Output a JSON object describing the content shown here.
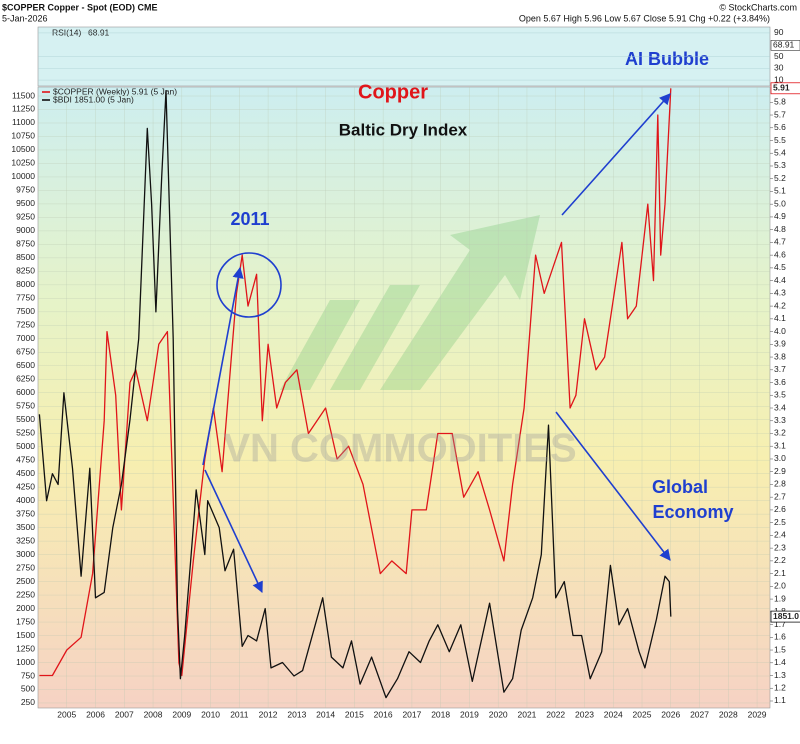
{
  "chart_data": {
    "type": "line",
    "title": "$COPPER Copper - Spot (EOD) CME",
    "date": "5-Jan-2026",
    "source": "© StockCharts.com",
    "header_stats": "Open 5.67 High 5.96 Low 5.67 Close 5.91 Chg +0.22 (+3.84%)",
    "rsi": {
      "label": "RSI(14)",
      "value": 68.91,
      "ylim": [
        0,
        100
      ],
      "yticks": [
        10,
        30,
        50,
        90
      ]
    },
    "annotations": [
      "Copper",
      "Baltic Dry Index",
      "2011",
      "AI Bubble",
      "Global",
      "Economy"
    ],
    "watermark": "VN COMMODITIES",
    "xlim": [
      2004,
      2029.45
    ],
    "xticks": [
      2005,
      2006,
      2007,
      2008,
      2009,
      2010,
      2011,
      2012,
      2013,
      2014,
      2015,
      2016,
      2017,
      2018,
      2019,
      2020,
      2021,
      2022,
      2023,
      2024,
      2025,
      2026,
      2027,
      2028,
      2029
    ],
    "ylim": [
      157,
      11667
    ],
    "yticks": [
      250,
      500,
      750,
      1000,
      1250,
      1500,
      1750,
      2000,
      2250,
      2500,
      2750,
      3000,
      3250,
      3500,
      3750,
      4000,
      4250,
      4500,
      4750,
      5000,
      5250,
      5500,
      5750,
      6000,
      6250,
      6500,
      6750,
      7000,
      7250,
      7500,
      7750,
      8000,
      8250,
      8500,
      8750,
      9000,
      9250,
      9500,
      9750,
      10000,
      10250,
      10500,
      10750,
      11000,
      11250,
      11500
    ],
    "y2lim": [
      1.045,
      5.92
    ],
    "y2ticks": [
      1.1,
      1.2,
      1.3,
      1.4,
      1.5,
      1.6,
      1.7,
      1.8,
      1.9,
      {
        "value": 2,
        "label": "2.0"
      },
      2.1,
      2.2,
      2.3,
      2.4,
      2.5,
      2.6,
      2.7,
      2.8,
      2.9,
      {
        "value": 3,
        "label": "3.0"
      },
      3.1,
      3.2,
      3.3,
      3.4,
      3.5,
      3.6,
      3.7,
      3.8,
      3.9,
      {
        "value": 4,
        "label": "4.0"
      },
      4.1,
      4.2,
      4.3,
      4.4,
      4.5,
      4.6,
      4.7,
      4.8,
      4.9,
      {
        "value": 5,
        "label": "5.0"
      },
      5.1,
      5.2,
      5.3,
      5.4,
      5.5,
      5.6,
      5.7,
      5.8
    ],
    "grid": true,
    "series": [
      {
        "name": "$COPPER (Weekly) 5.91 (5 Jan)",
        "color": "#e0151a",
        "axis": "y2",
        "last_label": "5.91",
        "x": [
          2004.05,
          2004.5,
          2005.0,
          2005.5,
          2005.9,
          2006.3,
          2006.4,
          2006.7,
          2006.9,
          2007.2,
          2007.4,
          2007.8,
          2008.2,
          2008.5,
          2008.9,
          2009.0,
          2009.4,
          2009.8,
          2010.1,
          2010.4,
          2010.9,
          2011.1,
          2011.3,
          2011.6,
          2011.8,
          2012.0,
          2012.3,
          2012.6,
          2013.0,
          2013.4,
          2014.0,
          2014.4,
          2014.8,
          2015.3,
          2015.9,
          2016.3,
          2016.8,
          2017.0,
          2017.5,
          2017.9,
          2018.4,
          2018.8,
          2019.3,
          2019.7,
          2020.2,
          2020.5,
          2020.9,
          2021.3,
          2021.6,
          2021.9,
          2022.2,
          2022.5,
          2022.7,
          2023.0,
          2023.4,
          2023.7,
          2024.3,
          2024.5,
          2024.8,
          2025.2,
          2025.4,
          2025.55,
          2025.65,
          2025.8,
          2026.0
        ],
        "values": [
          1.3,
          1.3,
          1.5,
          1.6,
          2.1,
          3.3,
          4.0,
          3.5,
          2.6,
          3.6,
          3.7,
          3.3,
          3.9,
          4.0,
          1.4,
          1.3,
          2.2,
          3.0,
          3.4,
          2.9,
          4.3,
          4.6,
          4.2,
          4.45,
          3.3,
          3.9,
          3.4,
          3.6,
          3.7,
          3.2,
          3.4,
          3.0,
          3.1,
          2.8,
          2.1,
          2.2,
          2.1,
          2.6,
          2.6,
          3.2,
          3.2,
          2.7,
          2.9,
          2.6,
          2.2,
          2.8,
          3.4,
          4.6,
          4.3,
          4.5,
          4.7,
          3.4,
          3.5,
          4.1,
          3.7,
          3.8,
          4.7,
          4.1,
          4.2,
          5.0,
          4.4,
          5.7,
          4.6,
          5.0,
          5.91
        ]
      },
      {
        "name": "$BDI 1851.00 (5 Jan)",
        "color": "#111111",
        "axis": "y",
        "last_label": "1851.0",
        "x": [
          2004.05,
          2004.3,
          2004.5,
          2004.7,
          2004.9,
          2005.2,
          2005.5,
          2005.8,
          2006.0,
          2006.3,
          2006.6,
          2006.9,
          2007.2,
          2007.5,
          2007.8,
          2007.95,
          2008.1,
          2008.3,
          2008.45,
          2008.7,
          2008.85,
          2008.95,
          2009.1,
          2009.4,
          2009.5,
          2009.8,
          2009.9,
          2010.3,
          2010.5,
          2010.8,
          2011.1,
          2011.3,
          2011.6,
          2011.9,
          2012.1,
          2012.5,
          2012.9,
          2013.2,
          2013.9,
          2014.2,
          2014.6,
          2014.9,
          2015.2,
          2015.6,
          2016.1,
          2016.5,
          2016.9,
          2017.3,
          2017.6,
          2017.9,
          2018.3,
          2018.7,
          2019.1,
          2019.7,
          2020.2,
          2020.5,
          2020.8,
          2021.2,
          2021.5,
          2021.75,
          2022.0,
          2022.3,
          2022.6,
          2022.9,
          2023.2,
          2023.6,
          2023.9,
          2024.2,
          2024.5,
          2024.9,
          2025.1,
          2025.5,
          2025.8,
          2025.95,
          2026.0
        ],
        "values": [
          5600,
          4000,
          4500,
          4300,
          6000,
          4600,
          2600,
          4600,
          2200,
          2300,
          3500,
          4300,
          5500,
          7000,
          10900,
          9500,
          7500,
          10000,
          11600,
          7000,
          2000,
          700,
          1500,
          3500,
          4200,
          3000,
          4000,
          3500,
          2700,
          3100,
          1300,
          1500,
          1400,
          2000,
          900,
          1000,
          750,
          850,
          2200,
          1100,
          900,
          1400,
          600,
          1100,
          350,
          700,
          1200,
          1000,
          1400,
          1700,
          1200,
          1700,
          650,
          2100,
          450,
          700,
          1600,
          2200,
          3000,
          5400,
          2200,
          2500,
          1500,
          1500,
          700,
          1200,
          2800,
          1700,
          2000,
          1200,
          900,
          1800,
          2600,
          2500,
          1851
        ]
      }
    ]
  }
}
